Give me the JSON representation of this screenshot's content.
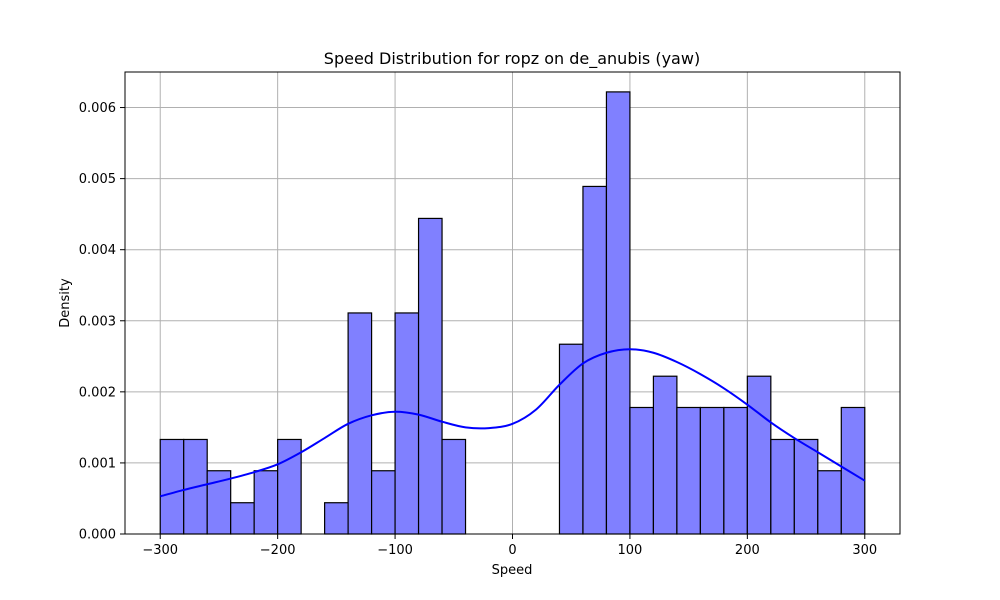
{
  "chart_data": {
    "type": "bar",
    "subtype": "histogram-with-kde",
    "title": "Speed Distribution for ropz on de_anubis (yaw)",
    "xlabel": "Speed",
    "ylabel": "Density",
    "xlim": [
      -330,
      330
    ],
    "ylim": [
      0,
      0.0065
    ],
    "xticks": [
      -300,
      -200,
      -100,
      0,
      100,
      200,
      300
    ],
    "xtick_labels": [
      "−300",
      "−200",
      "−100",
      "0",
      "100",
      "200",
      "300"
    ],
    "yticks": [
      0,
      0.001,
      0.002,
      0.003,
      0.004,
      0.005,
      0.006
    ],
    "ytick_labels": [
      "0.000",
      "0.001",
      "0.002",
      "0.003",
      "0.004",
      "0.005",
      "0.006"
    ],
    "grid": true,
    "colors": {
      "bar_fill": "#8080ff",
      "bar_edge": "#000000",
      "kde": "#0000ff"
    },
    "bins": {
      "start": -300,
      "width": 20,
      "values": [
        0.00133,
        0.00133,
        0.00089,
        0.00044,
        0.00089,
        0.00133,
        0,
        0.00044,
        0.00311,
        0.00089,
        0.00311,
        0.00444,
        0.00133,
        0,
        0,
        0,
        0,
        0.00267,
        0.00489,
        0.00622,
        0.00178,
        0.00222,
        0.00178,
        0.00178,
        0.00178,
        0.00222,
        0.00133,
        0.00133,
        0.00089,
        0.00178
      ]
    },
    "kde": {
      "x": [
        -300,
        -280,
        -260,
        -240,
        -220,
        -200,
        -180,
        -160,
        -140,
        -120,
        -100,
        -80,
        -60,
        -40,
        -20,
        0,
        20,
        40,
        60,
        80,
        100,
        120,
        140,
        160,
        180,
        200,
        220,
        240,
        260,
        280,
        300
      ],
      "y": [
        0.00053,
        0.00062,
        0.0007,
        0.00078,
        0.00087,
        0.00098,
        0.00115,
        0.00135,
        0.00155,
        0.00167,
        0.00172,
        0.00168,
        0.00158,
        0.0015,
        0.00149,
        0.00155,
        0.00175,
        0.0021,
        0.0024,
        0.00255,
        0.0026,
        0.00255,
        0.00242,
        0.00225,
        0.00205,
        0.00182,
        0.00157,
        0.00135,
        0.00115,
        0.00095,
        0.00075
      ]
    }
  }
}
